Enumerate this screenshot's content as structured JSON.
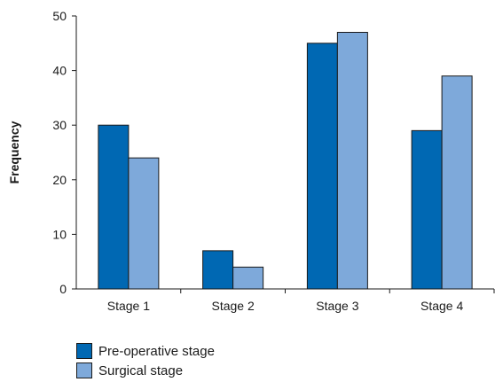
{
  "chart_data": {
    "type": "bar",
    "categories": [
      "Stage 1",
      "Stage 2",
      "Stage 3",
      "Stage 4"
    ],
    "series": [
      {
        "name": "Pre-operative stage",
        "values": [
          30,
          7,
          45,
          29
        ],
        "color": "#0068b3"
      },
      {
        "name": "Surgical stage",
        "values": [
          24,
          4,
          47,
          39
        ],
        "color": "#7ea9da"
      }
    ],
    "title": "",
    "xlabel": "",
    "ylabel": "Frequency",
    "ylim": [
      0,
      50
    ],
    "yticks": [
      0,
      10,
      20,
      30,
      40,
      50
    ],
    "grid": false,
    "legend_position": "bottom-left"
  }
}
